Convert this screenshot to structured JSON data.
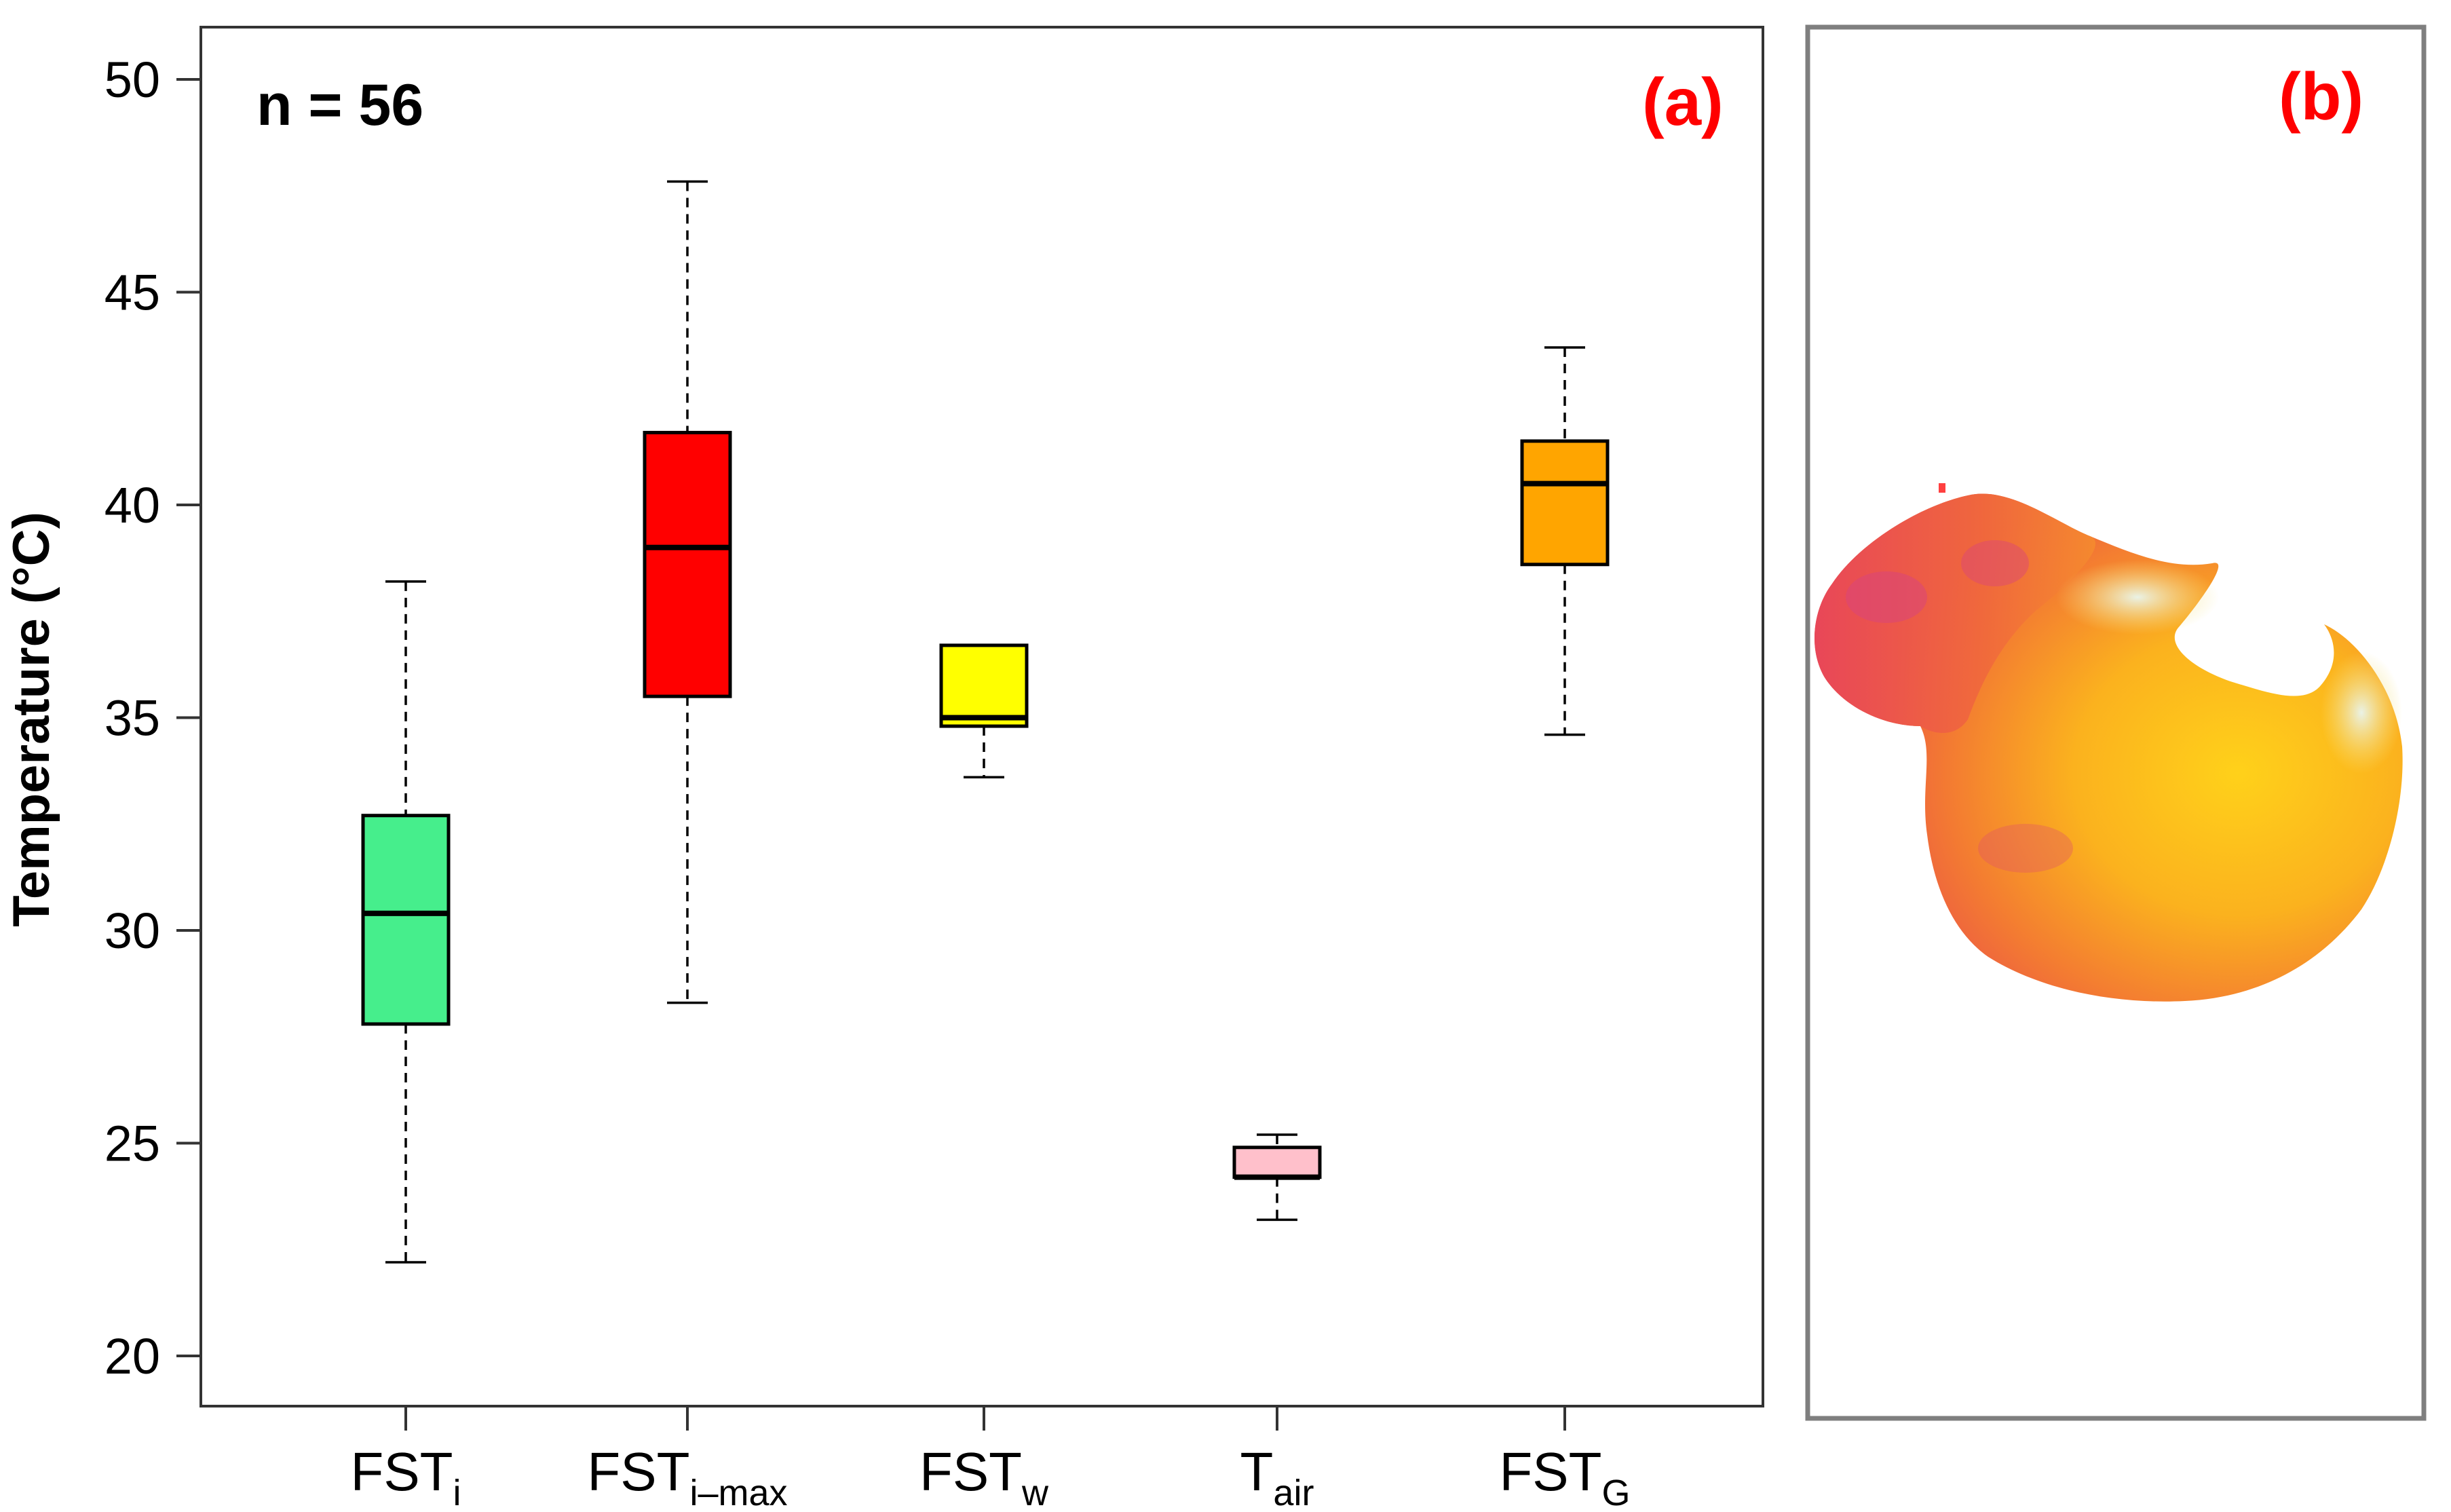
{
  "chart_data": [
    {
      "type": "box",
      "panel_label": "(a)",
      "annotation": "n = 56",
      "ylabel": "Temperature (°C)",
      "ylim": [
        20,
        51
      ],
      "yticks": [
        20,
        25,
        30,
        35,
        40,
        45,
        50
      ],
      "grid": false,
      "categories": [
        {
          "base": "FST",
          "sub": "i"
        },
        {
          "base": "FST",
          "sub": "i–max"
        },
        {
          "base": "FST",
          "sub": "w"
        },
        {
          "base": "T",
          "sub": "air"
        },
        {
          "base": "FST",
          "sub": "G"
        }
      ],
      "boxes": [
        {
          "min": 22.2,
          "q1": 27.8,
          "median": 30.4,
          "q3": 32.7,
          "max": 38.2,
          "color": "#46ee8c"
        },
        {
          "min": 28.3,
          "q1": 35.5,
          "median": 39.0,
          "q3": 41.7,
          "max": 47.6,
          "color": "#ff0000"
        },
        {
          "min": 33.6,
          "q1": 34.8,
          "median": 35.0,
          "q3": 36.7,
          "max": 36.7,
          "color": "#ffff00"
        },
        {
          "min": 23.2,
          "q1": 24.2,
          "median": 24.2,
          "q3": 24.9,
          "max": 25.2,
          "color": "#ffc0cb"
        },
        {
          "min": 34.6,
          "q1": 38.6,
          "median": 40.5,
          "q3": 41.5,
          "max": 43.7,
          "color": "#ffa500"
        }
      ]
    },
    {
      "type": "image",
      "panel_label": "(b)",
      "description_colors": [
        "#e8455a",
        "#f0683c",
        "#fbb21e",
        "#ffd11a",
        "#e6f0dc"
      ]
    }
  ],
  "colors": {
    "panel_label": "#ff0000",
    "axis": "#333333",
    "frame_b": "#7f7f7f"
  }
}
